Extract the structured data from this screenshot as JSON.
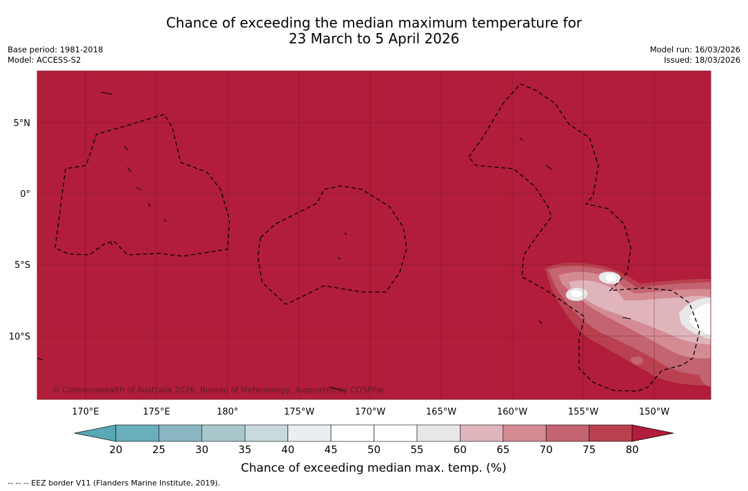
{
  "header": {
    "title_line1": "Chance of exceeding the median maximum temperature for",
    "title_line2": "23 March to 5 April 2026",
    "base_period": "Base period: 1981-2018",
    "model": "Model: ACCESS-S2",
    "model_run": "Model run: 16/03/2026",
    "issued": "Issued: 18/03/2026"
  },
  "map": {
    "copyright": "© Commonwealth of Australia 2026, Bureau of Meteorology, supported by COSPPac",
    "lat_labels": [
      "5°N",
      "0°",
      "5°S",
      "10°S"
    ],
    "lon_labels": [
      "170°E",
      "175°E",
      "180°",
      "175°W",
      "170°W",
      "165°W",
      "160°W",
      "155°W",
      "150°W"
    ],
    "background_color": "#b11d3a"
  },
  "legend": {
    "ticks": [
      "20",
      "25",
      "30",
      "35",
      "40",
      "45",
      "50",
      "55",
      "60",
      "65",
      "70",
      "75",
      "80"
    ],
    "colors": [
      "#6aaebc",
      "#89b6c1",
      "#a9c7cb",
      "#c8d8dc",
      "#e9eff1",
      "#ffffff",
      "#ffffff",
      "#e9e7e8",
      "#dfb4bb",
      "#d48b94",
      "#c46371",
      "#b9414f"
    ],
    "under_color": "#58a8b5",
    "over_color": "#b11d3a",
    "label": "Chance of exceeding median max. temp. (%)"
  },
  "footnote": "--  --  -- EEZ border V11 (Flanders Marine Institute, 2019)."
}
